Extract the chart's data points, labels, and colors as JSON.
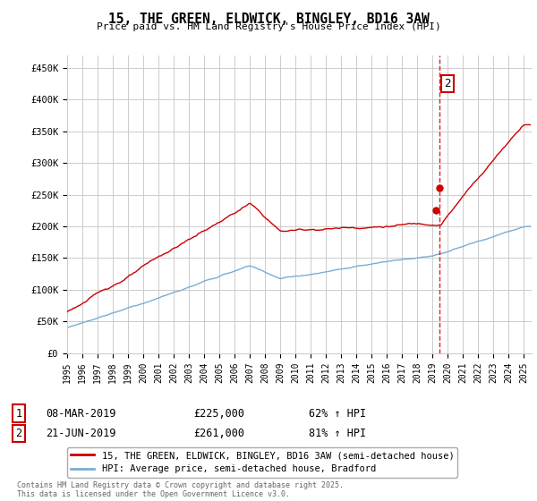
{
  "title": "15, THE GREEN, ELDWICK, BINGLEY, BD16 3AW",
  "subtitle": "Price paid vs. HM Land Registry's House Price Index (HPI)",
  "ylabel_ticks": [
    "£0",
    "£50K",
    "£100K",
    "£150K",
    "£200K",
    "£250K",
    "£300K",
    "£350K",
    "£400K",
    "£450K"
  ],
  "ytick_values": [
    0,
    50000,
    100000,
    150000,
    200000,
    250000,
    300000,
    350000,
    400000,
    450000
  ],
  "ylim": [
    0,
    470000
  ],
  "xlim_start": 1995.0,
  "xlim_end": 2025.5,
  "line1_color": "#cc0000",
  "line2_color": "#7aadd4",
  "dashed_line_color": "#cc0000",
  "dashed_line_x": 2019.47,
  "marker1_x": 2019.19,
  "marker1_y": 225000,
  "marker2_x": 2019.47,
  "marker2_y": 261000,
  "legend_label1": "15, THE GREEN, ELDWICK, BINGLEY, BD16 3AW (semi-detached house)",
  "legend_label2": "HPI: Average price, semi-detached house, Bradford",
  "table_row1": [
    "1",
    "08-MAR-2019",
    "£225,000",
    "62% ↑ HPI"
  ],
  "table_row2": [
    "2",
    "21-JUN-2019",
    "£261,000",
    "81% ↑ HPI"
  ],
  "footnote": "Contains HM Land Registry data © Crown copyright and database right 2025.\nThis data is licensed under the Open Government Licence v3.0.",
  "bg_color": "#ffffff",
  "grid_color": "#cccccc",
  "annotation2_label": "2"
}
